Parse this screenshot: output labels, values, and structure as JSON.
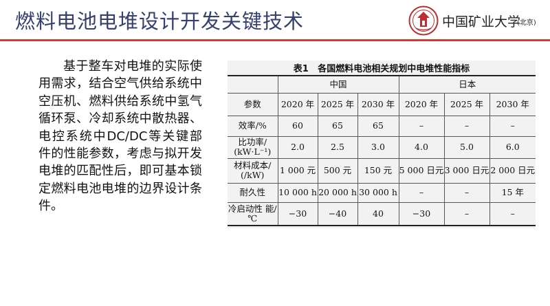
{
  "slide": {
    "title": "燃料电池电堆设计开发关键技术",
    "university": "中国矿业大学",
    "campus": "(北京)",
    "body": "基于整车对电堆的实际使用需求，结合空气供给系统中空压机、燃料供给系统中氢气循环泵、冷却系统中散热器、电控系统中DC/DC等关键部件的性能参数，考虑与拟开发电堆的匹配性后，即可基本锁定燃料电池电堆的边界设计条件。"
  },
  "colors": {
    "title": "#35406e",
    "rule": "#d33a33",
    "emblem": "#b8312f"
  },
  "icons": {
    "emblem": "university-emblem-icon"
  },
  "table": {
    "caption": "表1   各国燃料电池相关规划中电堆性能指标",
    "countries": [
      "中国",
      "日本"
    ],
    "param_header": "参数",
    "years": [
      "2020 年",
      "2025 年",
      "2030 年",
      "2020 年",
      "2025 年",
      "2030 年"
    ],
    "rows": [
      {
        "label": "效率/%",
        "cells": [
          "60",
          "65",
          "65",
          "–",
          "–",
          "–"
        ]
      },
      {
        "label": "比功率/ (kW·L⁻¹)",
        "cells": [
          "2.0",
          "2.5",
          "3.0",
          "4.0",
          "5.0",
          "6.0"
        ]
      },
      {
        "label": "材料成本/ (/kW)",
        "cells": [
          "1 000 元",
          "500 元",
          "150 元",
          "5 000 日元",
          "3 000 日元",
          "2 000 日元"
        ]
      },
      {
        "label": "耐久性",
        "cells": [
          "10 000 h",
          "20 000 h",
          "30 000 h",
          "–",
          "–",
          "15 年"
        ]
      },
      {
        "label": "冷启动性 能/℃",
        "cells": [
          "−30",
          "−40",
          "40",
          "−30",
          "–",
          "–"
        ]
      }
    ]
  }
}
